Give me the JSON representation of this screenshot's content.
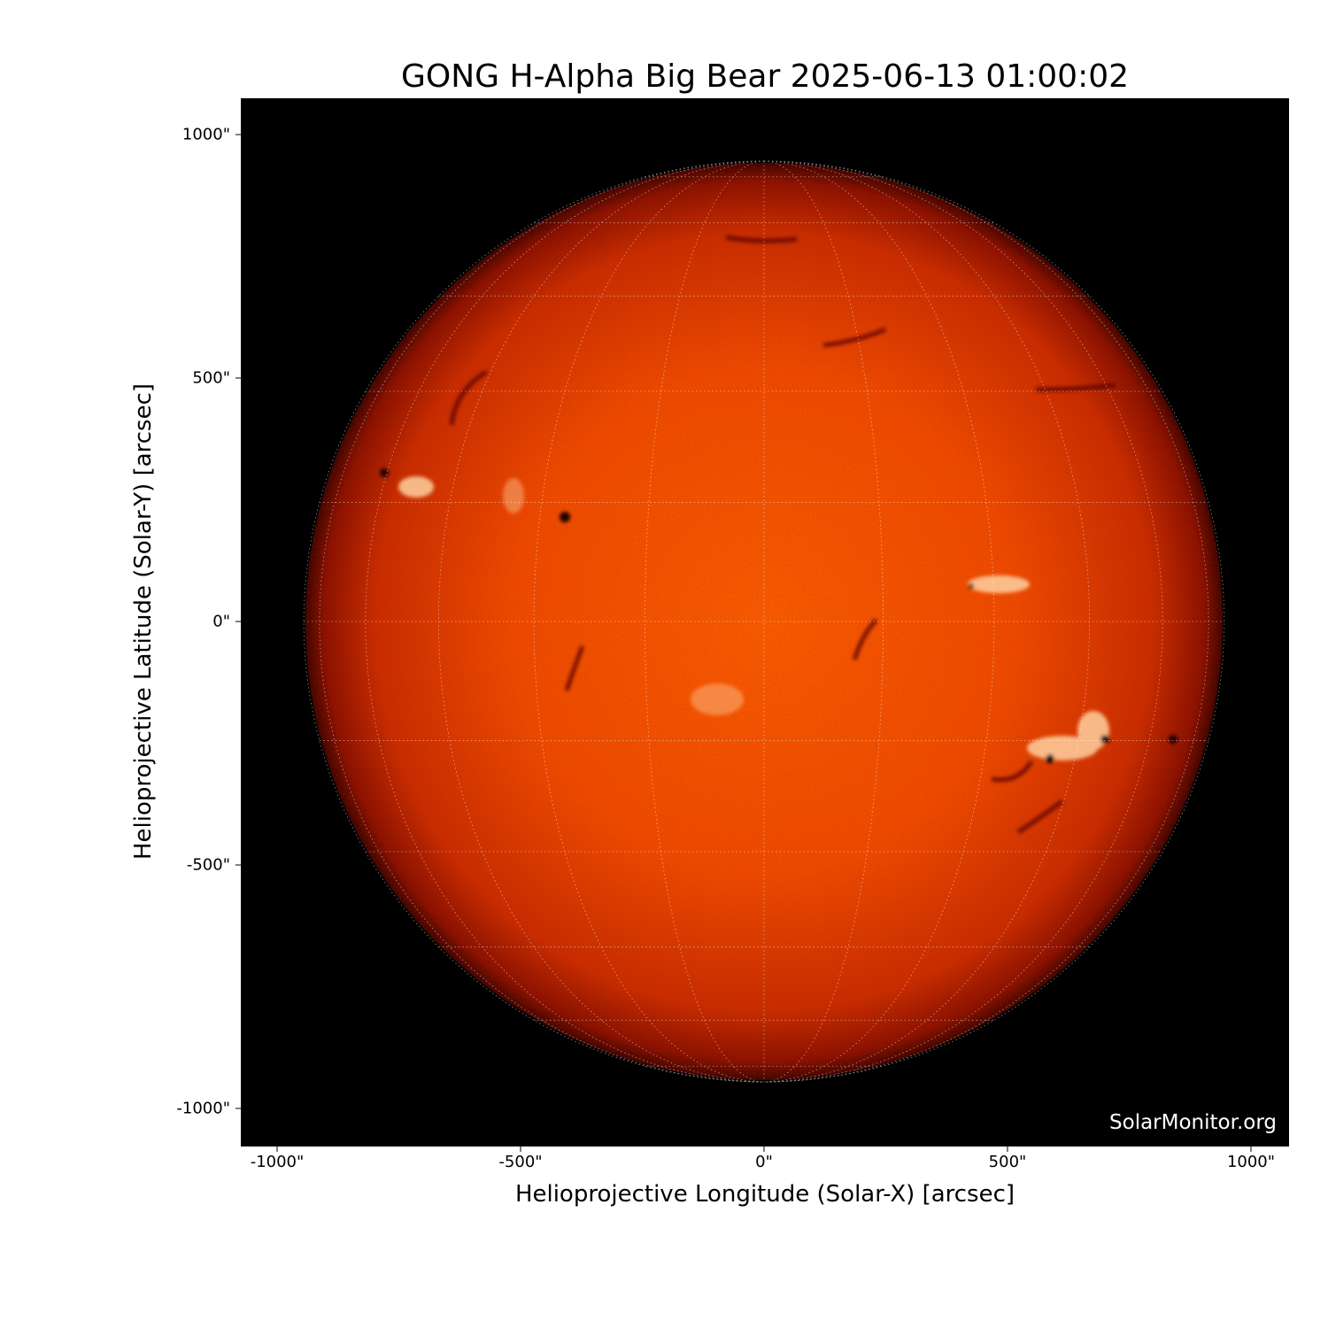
{
  "title": "GONG H-Alpha Big Bear 2025-06-13 01:00:02",
  "x_axis": {
    "label": "Helioprojective Longitude (Solar-X) [arcsec]",
    "ticks": [
      "-1000\"",
      "-500\"",
      "0\"",
      "500\"",
      "1000\""
    ],
    "tick_values": [
      -1000,
      -500,
      0,
      500,
      1000
    ]
  },
  "y_axis": {
    "label": "Helioprojective Latitude (Solar-Y) [arcsec]",
    "ticks": [
      "1000\"",
      "500\"",
      "0\"",
      "-500\"",
      "-1000\""
    ],
    "tick_values": [
      1000,
      500,
      0,
      -500,
      -1000
    ]
  },
  "watermark": "SolarMonitor.org",
  "colors": {
    "background": "#000000",
    "disk_center": "#ff5a00",
    "disk_limb": "#8a0a00",
    "grid": "#ffffff"
  }
}
